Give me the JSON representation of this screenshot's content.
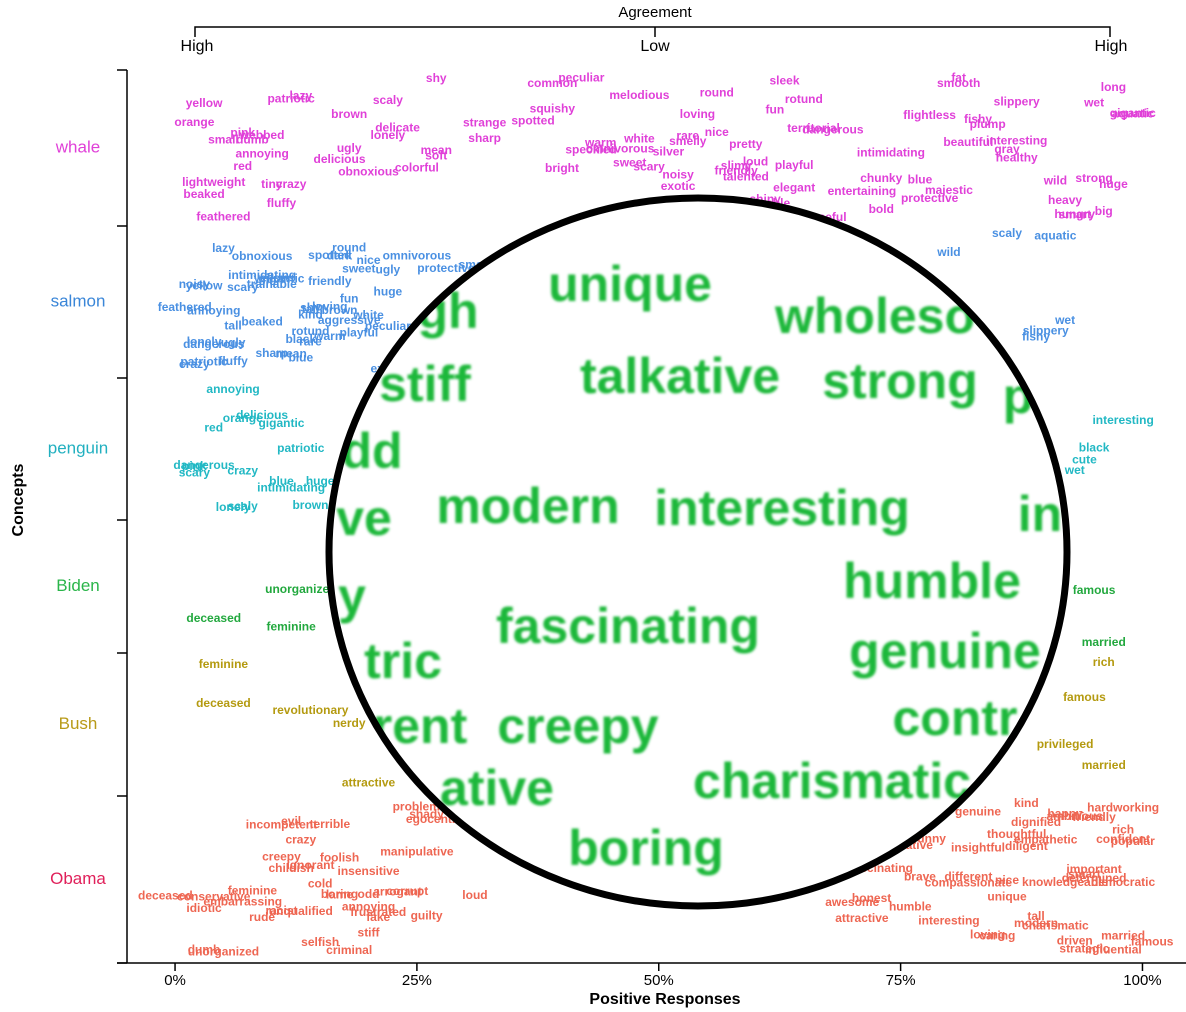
{
  "chart_data": {
    "type": "wordcloud",
    "x_label": "Positive Responses",
    "y_label": "Concepts",
    "top_axis": {
      "title": "Agreement",
      "labels": [
        "High",
        "Low",
        "High"
      ]
    },
    "xlim": [
      -6,
      104.5
    ],
    "xticks": [
      {
        "value": 0,
        "label": "0%"
      },
      {
        "value": 25,
        "label": "25%"
      },
      {
        "value": 50,
        "label": "50%"
      },
      {
        "value": 75,
        "label": "75%"
      },
      {
        "value": 100,
        "label": "100%"
      }
    ],
    "series": [
      {
        "name": "whale",
        "color": "#e040d8",
        "label_color": "#e040d8",
        "words": [
          "yellow",
          "webbed",
          "ugly",
          "small",
          "tiny",
          "red",
          "orange",
          "patriotic",
          "scaly",
          "soft",
          "shy",
          "sharp",
          "strange",
          "squishy",
          "spotted",
          "speckled",
          "warm",
          "white",
          "tenacious",
          "sweet",
          "silver",
          "tall",
          "talented",
          "trainable",
          "territorial",
          "smelly",
          "slimy",
          "sleek",
          "peculiar",
          "scary",
          "round",
          "shiny",
          "rotund",
          "melodious",
          "rare",
          "nice",
          "pretty",
          "playful",
          "omnivorous",
          "noisy",
          "loud",
          "kind",
          "loving",
          "fun",
          "graceful",
          "friendly",
          "elegant",
          "exotic",
          "common",
          "bright",
          "pink",
          "lazy",
          "obnoxious",
          "mean",
          "lonely",
          "lightweight",
          "fluffy",
          "feathered",
          "delicious",
          "dumb",
          "crazy",
          "brown",
          "delicate",
          "beaked",
          "annoying",
          "colorful",
          "entertaining",
          "chunky",
          "dangerous",
          "bold",
          "intimidating",
          "protective",
          "majestic",
          "plump",
          "flightless",
          "fishy",
          "interesting",
          "healthy",
          "smooth",
          "slippery",
          "wild",
          "wet",
          "strong",
          "smart",
          "long",
          "hungry",
          "huge",
          "heavy",
          "gigantic",
          "fat",
          "gray",
          "blue",
          "beautiful",
          "big",
          "aquatic"
        ],
        "values": [
          3,
          9,
          18,
          5,
          10,
          7,
          2,
          12,
          22,
          27,
          27,
          32,
          32,
          39,
          37,
          43,
          44,
          48,
          53,
          47,
          51,
          55,
          59,
          61,
          66,
          53,
          58,
          63,
          42,
          49,
          56,
          61,
          65,
          48,
          53,
          56,
          59,
          64,
          46,
          52,
          60,
          50,
          54,
          62,
          67,
          58,
          64,
          52,
          39,
          40,
          7,
          13,
          20,
          27,
          22,
          4,
          11,
          5,
          17,
          8,
          12,
          18,
          23,
          3,
          9,
          25,
          71,
          73,
          68,
          73,
          74,
          78,
          80,
          84,
          78,
          83,
          87,
          87,
          81,
          87,
          91,
          95,
          95,
          93,
          97,
          93,
          97,
          92,
          99,
          81,
          86,
          77,
          82,
          96,
          99
        ]
      },
      {
        "name": "salmon",
        "color": "#4a90e2",
        "label_color": "#3a86d8",
        "words": [
          "yellow",
          "tall",
          "trainable",
          "warm",
          "white",
          "ugly",
          "tenacious",
          "territorial",
          "scary",
          "shy",
          "round",
          "sweet",
          "strange",
          "smart",
          "patriotic",
          "sharp",
          "rare",
          "peculiar",
          "protective",
          "noisy",
          "obnoxious",
          "rotund",
          "playful",
          "omnivorous",
          "lazy",
          "mean",
          "loving",
          "nice",
          "lonely",
          "intimidating",
          "kind",
          "huge",
          "fun",
          "feathered",
          "fluffy",
          "gigantic",
          "friendly",
          "exotic",
          "dangerous",
          "black",
          "dark",
          "crazy",
          "beaked",
          "blue",
          "brown",
          "annoying",
          "yellow",
          "tall",
          "aggressive",
          "ugly",
          "spotted",
          "wild",
          "wet",
          "scaly",
          "slippery",
          "fishy",
          "aquatic"
        ],
        "values": [
          3,
          6,
          10,
          16,
          20,
          22,
          28,
          34,
          7,
          14,
          18,
          19,
          24,
          31,
          3,
          10,
          14,
          22,
          28,
          2,
          9,
          14,
          19,
          25,
          5,
          12,
          16,
          20,
          3,
          9,
          14,
          22,
          18,
          1,
          6,
          11,
          16,
          22,
          4,
          13,
          17,
          2,
          9,
          13,
          17,
          4,
          10,
          14,
          18,
          6,
          16,
          80,
          92,
          86,
          90,
          89,
          91
        ]
      },
      {
        "name": "penguin",
        "color": "#22b8c4",
        "label_color": "#22b0c0",
        "words": [
          "scary",
          "scaly",
          "red",
          "patriotic",
          "pink",
          "orange",
          "lonely",
          "intimidating",
          "gigantic",
          "huge",
          "dangerous",
          "delicious",
          "crazy",
          "brown",
          "blue",
          "annoying",
          "wet",
          "interesting",
          "cute",
          "black"
        ],
        "values": [
          2,
          7,
          4,
          13,
          2,
          7,
          6,
          12,
          11,
          15,
          3,
          9,
          7,
          14,
          11,
          6,
          93,
          98,
          94,
          95
        ]
      },
      {
        "name": "Biden",
        "color": "#22a83e",
        "label_color": "#2ab54a",
        "words": [
          "unorganized",
          "deceased",
          "feminine",
          "married",
          "famous"
        ],
        "values": [
          13,
          4,
          12,
          96,
          95
        ]
      },
      {
        "name": "Bush",
        "color": "#b49a10",
        "label_color": "#b89a18",
        "words": [
          "revolutionary",
          "nerdy",
          "feminine",
          "deceased",
          "attractive",
          "rich",
          "privileged",
          "married",
          "famous"
        ],
        "values": [
          14,
          18,
          5,
          5,
          20,
          96,
          92,
          96,
          94
        ]
      },
      {
        "name": "Obama",
        "color": "#ee6652",
        "label_color": "#e0205a",
        "words": [
          "unqualified",
          "strategic",
          "unique",
          "tall",
          "unorganized",
          "terrible",
          "smart",
          "rich",
          "rude",
          "stiff",
          "shady",
          "thoughtful",
          "knowledgeable",
          "popular",
          "racist",
          "selfish",
          "odd",
          "problematic",
          "nice",
          "married",
          "lame",
          "manipulative",
          "loving",
          "modern",
          "important",
          "incompetent",
          "insensitive",
          "loud",
          "interesting",
          "kind",
          "happy",
          "influential",
          "idiotic",
          "ignorant",
          "frustrated",
          "guilty",
          "humble",
          "insightful",
          "empathetic",
          "hardworking",
          "dumb",
          "feminine",
          "evil",
          "foolish",
          "fake",
          "egocentric",
          "honest",
          "funny",
          "genuine",
          "dignified",
          "friendly",
          "famous",
          "deceased",
          "embarrassing",
          "crazy",
          "criminal",
          "corrupt",
          "fascinating",
          "fair",
          "diligent",
          "determined",
          "creepy",
          "cold",
          "creative",
          "different",
          "driven",
          "confident",
          "conservative",
          "childish",
          "boring",
          "arrogant",
          "controversial",
          "astute",
          "awesome",
          "compassionate",
          "charismatic",
          "democratic",
          "attractive",
          "brave",
          "caring",
          "ambitious",
          "annoying"
        ],
        "values": [
          13,
          94,
          86,
          89,
          5,
          16,
          94,
          98,
          9,
          20,
          26,
          87,
          92,
          99,
          11,
          15,
          20,
          26,
          86,
          98,
          17,
          25,
          84,
          89,
          95,
          11,
          20,
          31,
          80,
          88,
          92,
          97,
          3,
          14,
          21,
          26,
          76,
          83,
          90,
          98,
          3,
          8,
          12,
          17,
          21,
          27,
          72,
          78,
          83,
          89,
          95,
          101,
          -1,
          7,
          13,
          18,
          24,
          73,
          78,
          88,
          95,
          11,
          15,
          76,
          82,
          93,
          98,
          4,
          12,
          17,
          23,
          58,
          65,
          70,
          82,
          91,
          98,
          71,
          77,
          85,
          93,
          20
        ]
      }
    ],
    "lens_words": [
      "unique",
      "wholeso",
      "gh",
      "stiff",
      "talkative",
      "strong",
      "p",
      "dd",
      "modern",
      "interesting",
      "in",
      "ve",
      "humble",
      "y",
      "fascinating",
      "genuine",
      "tric",
      "rent",
      "creepy",
      "contr",
      "ative",
      "charismatic",
      "boring"
    ]
  }
}
